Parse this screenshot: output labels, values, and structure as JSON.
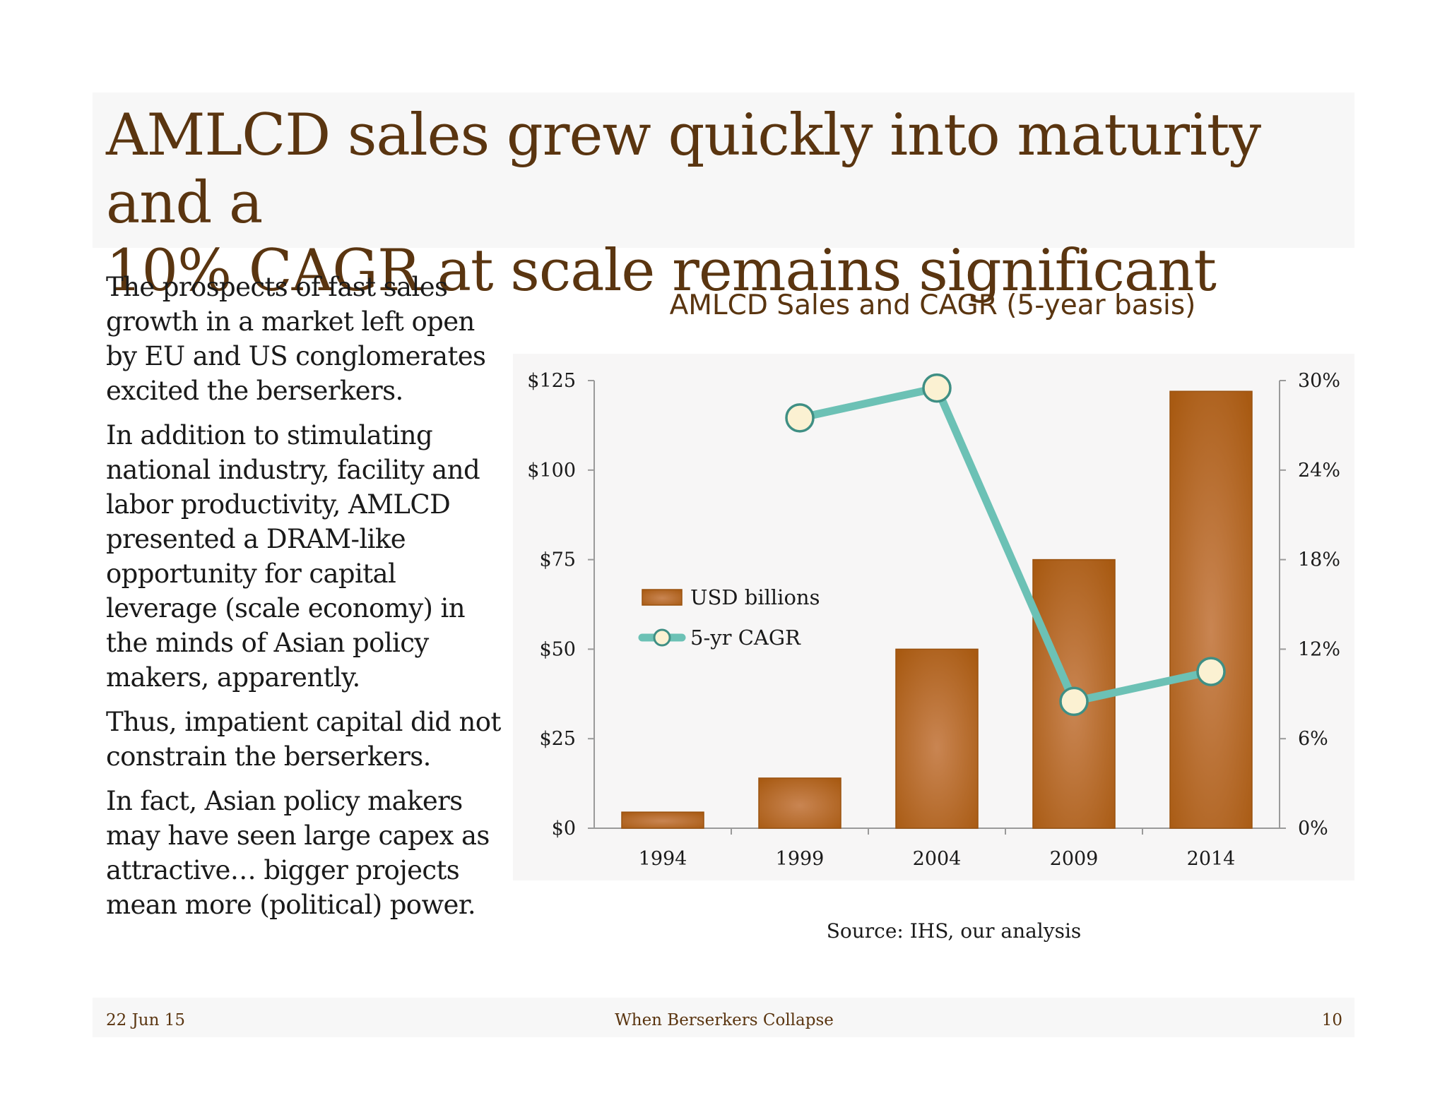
{
  "slide": {
    "title_line1": "AMLCD sales grew quickly into maturity and a",
    "title_line2": "10% CAGR at scale remains significant",
    "body_paragraphs": [
      "The prospects of fast sales growth in a market left open by EU and US conglomerates excited the berserkers.",
      "In addition to stimulating national industry, facility and labor productivity, AMLCD presented a DRAM-like opportunity for capital leverage (scale economy) in the minds of Asian policy makers, apparently.",
      "Thus, impatient capital did not constrain the berserkers.",
      "In fact, Asian policy makers may have seen large capex as attractive… bigger projects mean more (political) power."
    ],
    "source": "Source: IHS, our analysis"
  },
  "footer": {
    "date": "22 Jun 15",
    "center": "When Berserkers Collapse",
    "page": "10"
  },
  "colors": {
    "title": "#5a3510",
    "bar": "#b8662a",
    "line": "#6cc1b5",
    "marker_fill": "#fbf1d2"
  },
  "chart_data": {
    "type": "bar",
    "title": "AMLCD Sales and CAGR (5-year basis)",
    "categories": [
      "1994",
      "1999",
      "2004",
      "2009",
      "2014"
    ],
    "series": [
      {
        "name": "USD billions",
        "type": "bar",
        "axis": "left",
        "values": [
          4.5,
          14,
          50,
          75,
          122
        ]
      },
      {
        "name": "5-yr CAGR",
        "type": "line",
        "axis": "right",
        "values": [
          null,
          27.5,
          29.5,
          8.5,
          10.5
        ]
      }
    ],
    "y_left": {
      "range": [
        0,
        125
      ],
      "ticks": [
        0,
        25,
        50,
        75,
        100,
        125
      ],
      "tick_labels": [
        "$0",
        "$25",
        "$50",
        "$75",
        "$100",
        "$125"
      ]
    },
    "y_right": {
      "range": [
        0,
        30
      ],
      "ticks": [
        0,
        6,
        12,
        18,
        24,
        30
      ],
      "tick_labels": [
        "0%",
        "6%",
        "12%",
        "18%",
        "24%",
        "30%"
      ]
    },
    "legend_position": "center-left",
    "grid": false
  }
}
